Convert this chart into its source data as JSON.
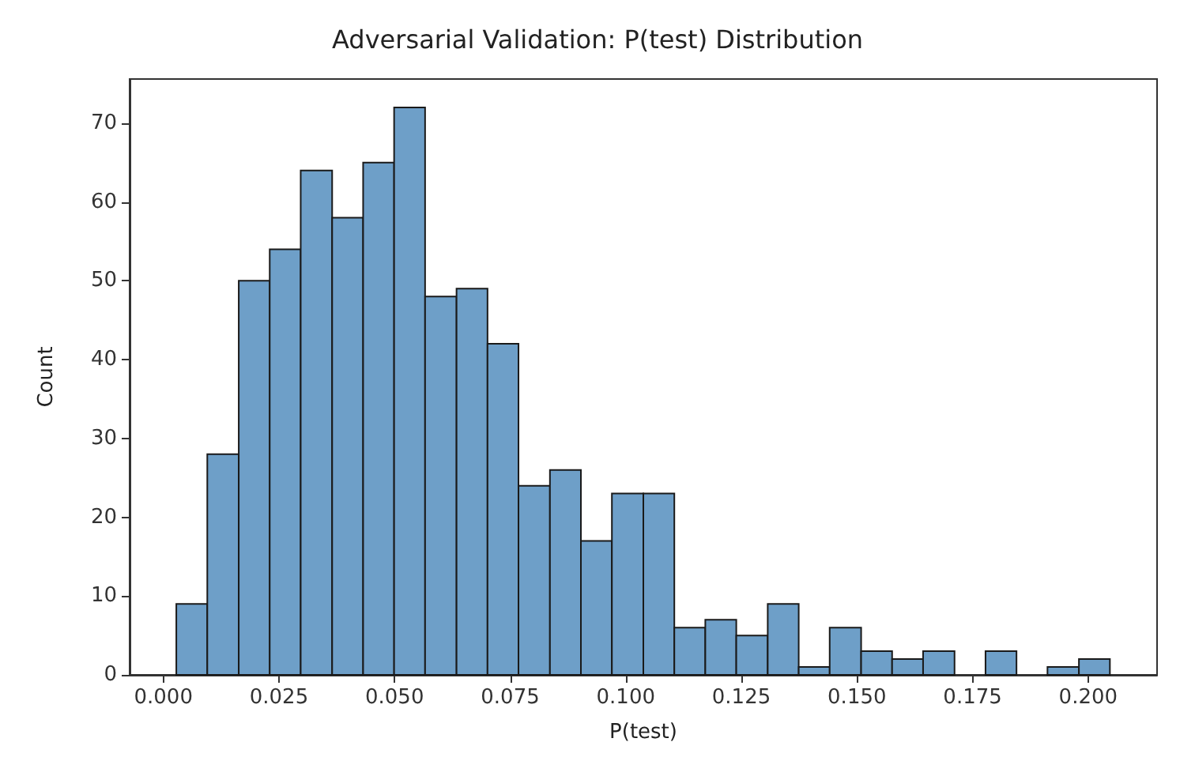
{
  "chart_data": {
    "type": "histogram",
    "title": "Adversarial Validation: P(test) Distribution",
    "xlabel": "P(test)",
    "ylabel": "Count",
    "bins": [
      0.0028,
      0.0095,
      0.0163,
      0.023,
      0.0297,
      0.0365,
      0.0432,
      0.0499,
      0.0566,
      0.0634,
      0.0701,
      0.0768,
      0.0836,
      0.0903,
      0.097,
      0.1038,
      0.1105,
      0.1172,
      0.1239,
      0.1307,
      0.1374,
      0.1441,
      0.1509,
      0.1576,
      0.1643,
      0.1711,
      0.1778,
      0.1845,
      0.1912,
      0.198,
      0.2047
    ],
    "values": [
      9,
      28,
      50,
      54,
      64,
      58,
      65,
      72,
      48,
      49,
      42,
      24,
      26,
      17,
      23,
      23,
      6,
      7,
      5,
      9,
      1,
      6,
      3,
      2,
      3,
      0,
      3,
      0,
      1,
      2
    ],
    "color": "#6e9fc8",
    "xlim": [
      -0.0073,
      0.2149
    ],
    "xticks": [
      {
        "value": 0,
        "label": "0.000"
      },
      {
        "value": 0.025,
        "label": "0.025"
      },
      {
        "value": 0.05,
        "label": "0.050"
      },
      {
        "value": 0.075,
        "label": "0.075"
      },
      {
        "value": 0.1,
        "label": "0.100"
      },
      {
        "value": 0.125,
        "label": "0.125"
      },
      {
        "value": 0.15,
        "label": "0.150"
      },
      {
        "value": 0.175,
        "label": "0.175"
      },
      {
        "value": 0.2,
        "label": "0.200"
      }
    ],
    "ylim": [
      0,
      75.6
    ],
    "yticks": [
      0,
      10,
      20,
      30,
      40,
      50,
      60,
      70
    ],
    "grid": false
  }
}
